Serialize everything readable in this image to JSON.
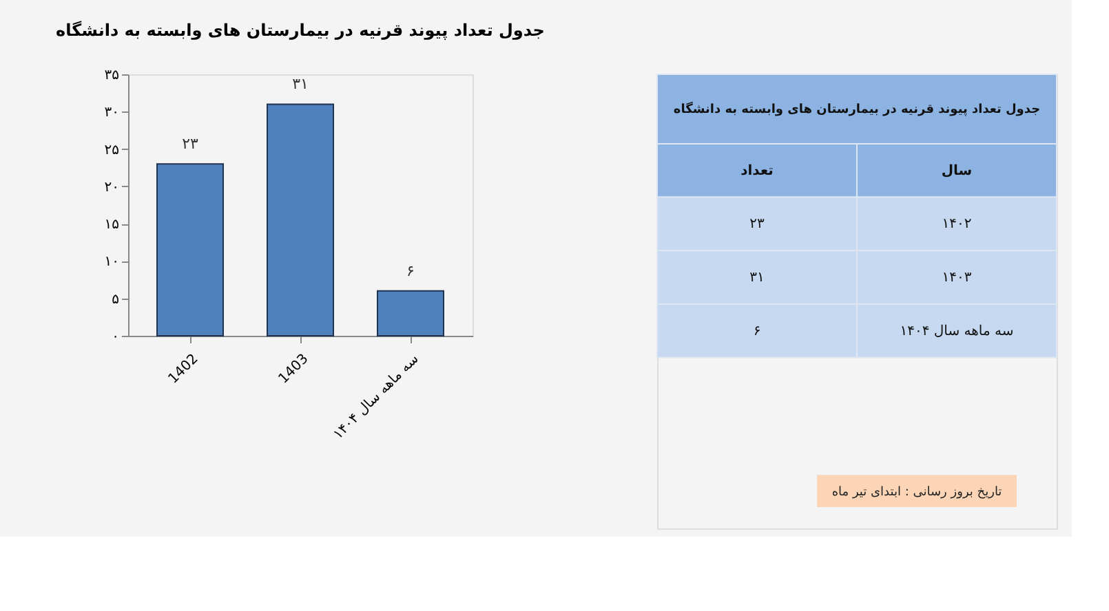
{
  "chart_data": [
    {
      "type": "bar",
      "title": "جدول تعداد پیوند قرنیه در بیمارستان های وابسته به دانشگاه",
      "categories": [
        "1402",
        "1403",
        "سه ماهه سال ۱۴۰۴"
      ],
      "values": [
        23,
        31,
        6
      ],
      "value_labels": [
        "۲۳",
        "۳۱",
        "۶"
      ],
      "color": "#4f81bd",
      "ylim": [
        0,
        35
      ],
      "yticks": [
        {
          "value": 0,
          "label": "۰"
        },
        {
          "value": 5,
          "label": "۵"
        },
        {
          "value": 10,
          "label": "۱۰"
        },
        {
          "value": 15,
          "label": "۱۵"
        },
        {
          "value": 20,
          "label": "۲۰"
        },
        {
          "value": 25,
          "label": "۲۵"
        },
        {
          "value": 30,
          "label": "۳۰"
        },
        {
          "value": 35,
          "label": "۳۵"
        }
      ],
      "grid": false
    },
    {
      "type": "other",
      "title": "جدول تعداد پیوند قرنیه در بیمارستان های وابسته به دانشگاه",
      "xlabel": "سال",
      "ylabel": "تعداد",
      "categories": [
        "۱۴۰۲",
        "۱۴۰۳",
        "سه ماهه  سال ۱۴۰۴"
      ],
      "value_labels": [
        "۲۳",
        "۳۱",
        "۶"
      ],
      "annotations": [
        "تاریخ بروز رسانی : ابتدای تیر ماه"
      ]
    }
  ]
}
